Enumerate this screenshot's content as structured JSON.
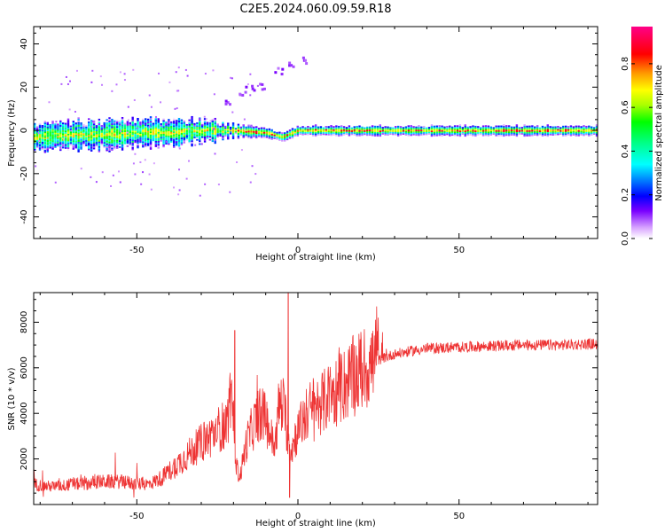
{
  "figure": {
    "title": "C2E5.2024.060.09.59.R18"
  },
  "chart_data": [
    {
      "type": "heatmap",
      "xlabel": "Height of straight line (km)",
      "ylabel": "Frequency (Hz)",
      "xlim": [
        -82,
        93
      ],
      "ylim": [
        -50,
        48
      ],
      "xticks": [
        -50,
        0,
        50
      ],
      "yticks": [
        40,
        20,
        0,
        -20,
        -40
      ],
      "colorbar": {
        "label": "Normalized spectral amplitude",
        "range": [
          0.0,
          0.97
        ],
        "ticks": [
          0.0,
          0.2,
          0.4,
          0.6,
          0.8
        ],
        "colormap": "white-violet-blue-cyan-green-yellow-orange-red-magenta"
      },
      "band_center_hz": [
        [
          -82,
          -3
        ],
        [
          -70,
          -2
        ],
        [
          -60,
          -2
        ],
        [
          -50,
          -1
        ],
        [
          -40,
          -1
        ],
        [
          -30,
          0
        ],
        [
          -20,
          0
        ],
        [
          -10,
          -1
        ],
        [
          -5,
          -3
        ],
        [
          0,
          0
        ],
        [
          10,
          0
        ],
        [
          30,
          0
        ],
        [
          60,
          0
        ],
        [
          93,
          0
        ]
      ],
      "band_halfwidth_hz": [
        [
          -82,
          6
        ],
        [
          -60,
          6
        ],
        [
          -45,
          6
        ],
        [
          -30,
          5
        ],
        [
          -20,
          3
        ],
        [
          -10,
          2
        ],
        [
          0,
          2
        ],
        [
          30,
          2
        ],
        [
          93,
          2
        ]
      ],
      "excursion_hz": [
        [
          -22,
          13
        ],
        [
          -18,
          17
        ],
        [
          -15,
          20
        ],
        [
          -12,
          21
        ],
        [
          -6,
          28
        ],
        [
          -2,
          31
        ],
        [
          2,
          33
        ]
      ]
    },
    {
      "type": "line",
      "xlabel": "Height of straight line (km)",
      "ylabel": "SNR (10 * v/v)",
      "xlim": [
        -82,
        93
      ],
      "ylim": [
        0,
        9300
      ],
      "xticks": [
        -50,
        0,
        50
      ],
      "yticks": [
        2000,
        4000,
        6000,
        8000
      ],
      "color": "#ee3333",
      "series": [
        {
          "x": [
            -82,
            -78,
            -74,
            -70,
            -66,
            -62,
            -58,
            -54,
            -50,
            -46,
            -42,
            -38,
            -34,
            -30,
            -26,
            -24,
            -22,
            -21,
            -20,
            -19,
            -18,
            -16,
            -14,
            -12,
            -10,
            -8,
            -7,
            -6,
            -5,
            -4,
            -3,
            -2,
            -1,
            0,
            2,
            4,
            6,
            8,
            10,
            14,
            18,
            22,
            26,
            30,
            34,
            40,
            50,
            60,
            70,
            80,
            93
          ],
          "y": [
            900,
            800,
            800,
            900,
            900,
            1000,
            1000,
            1000,
            900,
            900,
            1200,
            1700,
            2200,
            2700,
            3100,
            3400,
            3500,
            4600,
            3600,
            1600,
            1200,
            2700,
            3400,
            4000,
            3800,
            2800,
            2600,
            4200,
            4500,
            4000,
            2800,
            2400,
            2900,
            3200,
            3800,
            4200,
            4400,
            4500,
            4800,
            5200,
            5700,
            6100,
            6400,
            6600,
            6700,
            6850,
            6900,
            6950,
            7000,
            7000,
            7050
          ]
        }
      ],
      "spikes": [
        {
          "x": -19.6,
          "y": 7650
        },
        {
          "x": -3.0,
          "y": 9300
        },
        {
          "x": -2.6,
          "y": 300
        }
      ]
    }
  ]
}
